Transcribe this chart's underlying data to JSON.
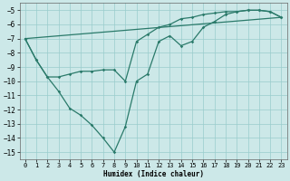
{
  "xlabel": "Humidex (Indice chaleur)",
  "xlim": [
    -0.5,
    23.5
  ],
  "ylim": [
    -15.5,
    -4.5
  ],
  "yticks": [
    -5,
    -6,
    -7,
    -8,
    -9,
    -10,
    -11,
    -12,
    -13,
    -14,
    -15
  ],
  "xticks": [
    0,
    1,
    2,
    3,
    4,
    5,
    6,
    7,
    8,
    9,
    10,
    11,
    12,
    13,
    14,
    15,
    16,
    17,
    18,
    19,
    20,
    21,
    22,
    23
  ],
  "bg_color": "#cce8e8",
  "grid_color": "#99cccc",
  "line_color": "#2a7a6a",
  "curve1_x": [
    0,
    1,
    2,
    3,
    4,
    5,
    6,
    7,
    8,
    9,
    10,
    11,
    12,
    13,
    14,
    15,
    16,
    17,
    18,
    19,
    20,
    21,
    22,
    23
  ],
  "curve1_y": [
    -7.0,
    -8.5,
    -9.7,
    -10.7,
    -11.9,
    -12.4,
    -13.1,
    -14.0,
    -15.0,
    -13.2,
    -10.0,
    -9.5,
    -7.2,
    -6.8,
    -7.5,
    -7.2,
    -6.2,
    -5.8,
    -5.3,
    -5.1,
    -5.0,
    -5.0,
    -5.1,
    -5.5
  ],
  "curve2_x": [
    0,
    1,
    2,
    3,
    4,
    5,
    6,
    7,
    8,
    9,
    10,
    11,
    12,
    13,
    14,
    15,
    16,
    17,
    18,
    19,
    20,
    21,
    22,
    23
  ],
  "curve2_y": [
    -7.0,
    -8.5,
    -9.7,
    -9.7,
    -9.5,
    -9.3,
    -9.3,
    -9.2,
    -9.2,
    -10.0,
    -7.2,
    -6.7,
    -6.2,
    -6.0,
    -5.6,
    -5.5,
    -5.3,
    -5.2,
    -5.1,
    -5.1,
    -5.0,
    -5.0,
    -5.1,
    -5.5
  ],
  "curve3_x": [
    0,
    23
  ],
  "curve3_y": [
    -7.0,
    -5.5
  ],
  "xlabel_fontsize": 5.5,
  "tick_fontsize": 5.0
}
